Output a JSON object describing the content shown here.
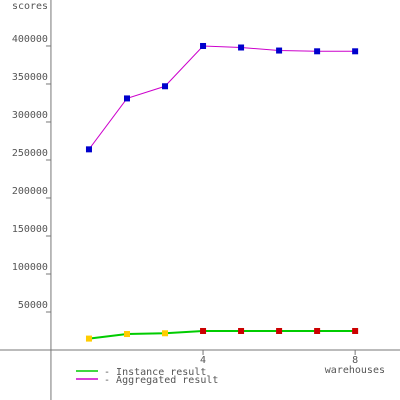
{
  "chart_data": {
    "type": "line",
    "y_label": "scores",
    "x_label": "warehouses",
    "x": [
      1,
      2,
      3,
      4,
      5,
      6,
      7,
      8
    ],
    "series": [
      {
        "name": "Instance result",
        "color": "#00cc00",
        "marker_colors": [
          "#ffcc00",
          "#ffcc00",
          "#ffcc00",
          "#cc0000",
          "#cc0000",
          "#cc0000",
          "#cc0000",
          "#cc0000"
        ],
        "values": [
          15000,
          21000,
          22000,
          25000,
          25000,
          25000,
          25000,
          25000
        ]
      },
      {
        "name": "Aggregated result",
        "color": "#cc00cc",
        "marker_colors": [
          "#0000cc",
          "#0000cc",
          "#0000cc",
          "#0000cc",
          "#0000cc",
          "#0000cc",
          "#0000cc",
          "#0000cc"
        ],
        "values": [
          264000,
          331000,
          347000,
          400000,
          398000,
          394000,
          393000,
          393000
        ]
      }
    ],
    "xlim": [
      -1.34,
      9.18
    ],
    "ylim": [
      -65800,
      460500
    ],
    "xticks": [
      4,
      8
    ],
    "yticks": [
      50000,
      100000,
      150000,
      200000,
      250000,
      300000,
      350000,
      400000
    ]
  }
}
